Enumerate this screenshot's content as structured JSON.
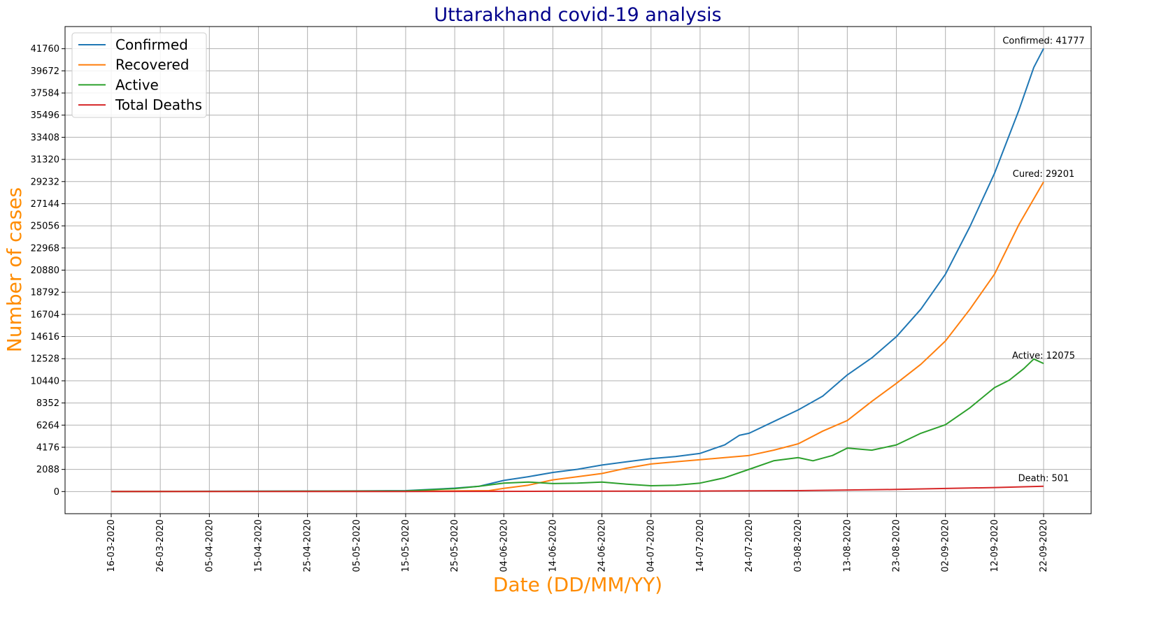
{
  "chart_data": {
    "type": "line",
    "title": "Uttarakhand covid-19 analysis",
    "xlabel": "Date (DD/MM/YY)",
    "ylabel": "Number of cases",
    "x_start": "16-03-2020",
    "x_end": "22-09-2020",
    "x_ticks": [
      "16-03-2020",
      "26-03-2020",
      "05-04-2020",
      "15-04-2020",
      "25-04-2020",
      "05-05-2020",
      "15-05-2020",
      "25-05-2020",
      "04-06-2020",
      "14-06-2020",
      "24-06-2020",
      "04-07-2020",
      "14-07-2020",
      "24-07-2020",
      "03-08-2020",
      "13-08-2020",
      "23-08-2020",
      "02-09-2020",
      "12-09-2020",
      "22-09-2020"
    ],
    "y_ticks": [
      0,
      2088,
      4176,
      6264,
      8352,
      10440,
      12528,
      14616,
      16704,
      18792,
      20880,
      22968,
      25056,
      27144,
      29232,
      31320,
      33408,
      35496,
      37584,
      39672,
      41760
    ],
    "ylim": [
      -2088,
      43848
    ],
    "grid": true,
    "legend_position": "upper-left",
    "series": [
      {
        "name": "Confirmed",
        "color": "#1f77b4",
        "points": [
          [
            "16-03-2020",
            0
          ],
          [
            "05-04-2020",
            30
          ],
          [
            "05-05-2020",
            60
          ],
          [
            "15-05-2020",
            90
          ],
          [
            "25-05-2020",
            320
          ],
          [
            "30-05-2020",
            500
          ],
          [
            "04-06-2020",
            1050
          ],
          [
            "09-06-2020",
            1400
          ],
          [
            "14-06-2020",
            1800
          ],
          [
            "19-06-2020",
            2100
          ],
          [
            "24-06-2020",
            2500
          ],
          [
            "29-06-2020",
            2800
          ],
          [
            "04-07-2020",
            3100
          ],
          [
            "09-07-2020",
            3300
          ],
          [
            "14-07-2020",
            3600
          ],
          [
            "19-07-2020",
            4400
          ],
          [
            "22-07-2020",
            5300
          ],
          [
            "24-07-2020",
            5500
          ],
          [
            "29-07-2020",
            6600
          ],
          [
            "03-08-2020",
            7700
          ],
          [
            "08-08-2020",
            9000
          ],
          [
            "13-08-2020",
            11000
          ],
          [
            "18-08-2020",
            12600
          ],
          [
            "23-08-2020",
            14600
          ],
          [
            "28-08-2020",
            17200
          ],
          [
            "02-09-2020",
            20500
          ],
          [
            "07-09-2020",
            25000
          ],
          [
            "12-09-2020",
            30000
          ],
          [
            "17-09-2020",
            36000
          ],
          [
            "20-09-2020",
            40000
          ],
          [
            "22-09-2020",
            41777
          ]
        ]
      },
      {
        "name": "Recovered",
        "color": "#ff7f0e",
        "points": [
          [
            "16-03-2020",
            0
          ],
          [
            "15-05-2020",
            40
          ],
          [
            "25-05-2020",
            60
          ],
          [
            "01-06-2020",
            90
          ],
          [
            "04-06-2020",
            300
          ],
          [
            "09-06-2020",
            600
          ],
          [
            "14-06-2020",
            1100
          ],
          [
            "19-06-2020",
            1400
          ],
          [
            "24-06-2020",
            1700
          ],
          [
            "29-06-2020",
            2200
          ],
          [
            "04-07-2020",
            2600
          ],
          [
            "09-07-2020",
            2800
          ],
          [
            "14-07-2020",
            3000
          ],
          [
            "19-07-2020",
            3200
          ],
          [
            "24-07-2020",
            3400
          ],
          [
            "29-07-2020",
            3900
          ],
          [
            "03-08-2020",
            4500
          ],
          [
            "08-08-2020",
            5700
          ],
          [
            "13-08-2020",
            6700
          ],
          [
            "18-08-2020",
            8500
          ],
          [
            "23-08-2020",
            10200
          ],
          [
            "28-08-2020",
            12000
          ],
          [
            "02-09-2020",
            14200
          ],
          [
            "07-09-2020",
            17200
          ],
          [
            "12-09-2020",
            20500
          ],
          [
            "17-09-2020",
            25200
          ],
          [
            "22-09-2020",
            29201
          ]
        ]
      },
      {
        "name": "Active",
        "color": "#2ca02c",
        "points": [
          [
            "16-03-2020",
            0
          ],
          [
            "05-05-2020",
            40
          ],
          [
            "15-05-2020",
            60
          ],
          [
            "25-05-2020",
            280
          ],
          [
            "30-05-2020",
            500
          ],
          [
            "04-06-2020",
            800
          ],
          [
            "09-06-2020",
            900
          ],
          [
            "14-06-2020",
            750
          ],
          [
            "19-06-2020",
            800
          ],
          [
            "24-06-2020",
            900
          ],
          [
            "29-06-2020",
            700
          ],
          [
            "04-07-2020",
            550
          ],
          [
            "09-07-2020",
            600
          ],
          [
            "14-07-2020",
            800
          ],
          [
            "19-07-2020",
            1300
          ],
          [
            "24-07-2020",
            2100
          ],
          [
            "29-07-2020",
            2900
          ],
          [
            "03-08-2020",
            3200
          ],
          [
            "06-08-2020",
            2900
          ],
          [
            "10-08-2020",
            3400
          ],
          [
            "13-08-2020",
            4100
          ],
          [
            "18-08-2020",
            3900
          ],
          [
            "23-08-2020",
            4400
          ],
          [
            "28-08-2020",
            5500
          ],
          [
            "02-09-2020",
            6300
          ],
          [
            "07-09-2020",
            7900
          ],
          [
            "12-09-2020",
            9800
          ],
          [
            "15-09-2020",
            10500
          ],
          [
            "18-09-2020",
            11600
          ],
          [
            "20-09-2020",
            12500
          ],
          [
            "22-09-2020",
            12075
          ]
        ]
      },
      {
        "name": "Total Deaths",
        "color": "#d62728",
        "points": [
          [
            "16-03-2020",
            0
          ],
          [
            "15-05-2020",
            5
          ],
          [
            "14-06-2020",
            25
          ],
          [
            "14-07-2020",
            50
          ],
          [
            "03-08-2020",
            90
          ],
          [
            "23-08-2020",
            200
          ],
          [
            "12-09-2020",
            380
          ],
          [
            "22-09-2020",
            501
          ]
        ]
      }
    ],
    "annotations": [
      {
        "text": "Confirmed: 41777",
        "date": "22-09-2020",
        "value": 41777
      },
      {
        "text": "Cured: 29201",
        "date": "22-09-2020",
        "value": 29201
      },
      {
        "text": "Active: 12075",
        "date": "22-09-2020",
        "value": 12075
      },
      {
        "text": "Death: 501",
        "date": "22-09-2020",
        "value": 501
      }
    ]
  }
}
